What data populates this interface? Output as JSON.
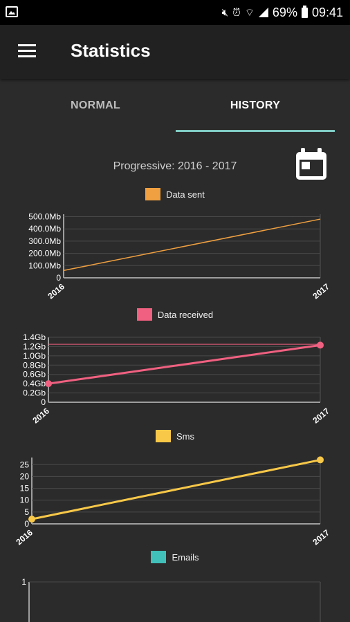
{
  "status_bar": {
    "battery_percent": "69%",
    "time": "09:41",
    "icons": [
      "image-icon",
      "mute-icon",
      "alarm-icon",
      "wifi-icon",
      "signal-icon",
      "battery-icon"
    ]
  },
  "app_bar": {
    "title": "Statistics",
    "menu_icon": "hamburger-menu-icon"
  },
  "tabs": [
    {
      "label": "NORMAL",
      "selected": false
    },
    {
      "label": "HISTORY",
      "selected": true
    }
  ],
  "range_label": "Progressive: 2016 - 2017",
  "calendar_icon": "calendar-icon",
  "colors": {
    "data_sent": "#f0a040",
    "data_received": "#f06080",
    "sms": "#f8c848",
    "emails": "#40c0b8",
    "tab_indicator": "#80cbc4"
  },
  "chart_data": [
    {
      "type": "line",
      "legend": "Data sent",
      "x": [
        "2016",
        "2017"
      ],
      "values_mb": [
        60,
        480
      ],
      "y_ticks": [
        "0",
        "100.0Mb",
        "200.0Mb",
        "300.0Mb",
        "400.0Mb",
        "500.0Mb"
      ],
      "ylim": [
        0,
        520
      ]
    },
    {
      "type": "line",
      "legend": "Data received",
      "x": [
        "2016",
        "2017"
      ],
      "values_gb": [
        0.4,
        1.23
      ],
      "y_ticks": [
        "0",
        "0.2Gb",
        "0.4Gb",
        "0.6Gb",
        "0.8Gb",
        "1.0Gb",
        "1.2Gb",
        "1.4Gb"
      ],
      "ylim": [
        0,
        1.4
      ],
      "limit_line": 1.25
    },
    {
      "type": "line",
      "legend": "Sms",
      "x": [
        "2016",
        "2017"
      ],
      "values": [
        2,
        27
      ],
      "y_ticks": [
        "0",
        "5",
        "10",
        "15",
        "20",
        "25"
      ],
      "ylim": [
        0,
        28
      ]
    },
    {
      "type": "line",
      "legend": "Emails",
      "x": [],
      "values": [],
      "y_ticks": [
        "1"
      ],
      "ylim": [
        0,
        1
      ]
    }
  ]
}
